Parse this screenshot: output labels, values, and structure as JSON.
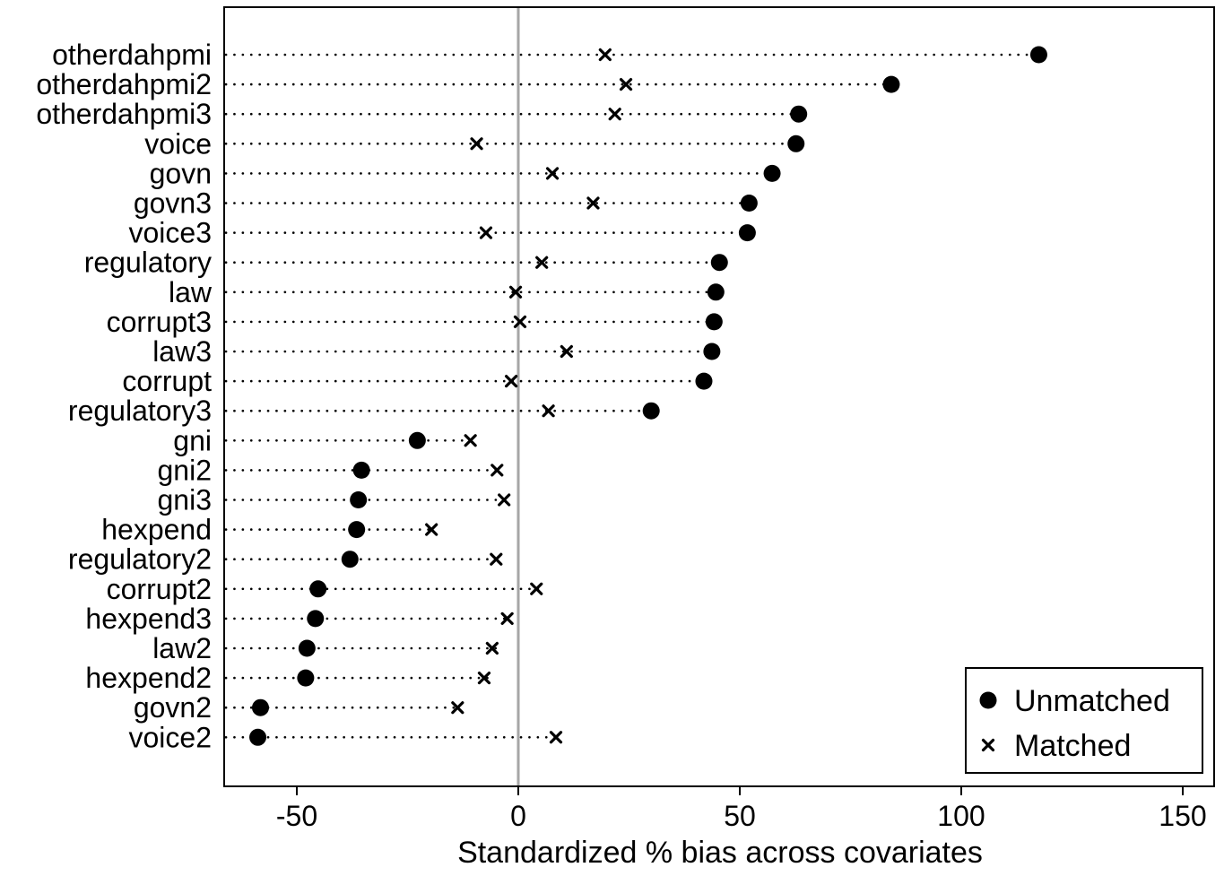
{
  "chart_data": {
    "type": "scatter",
    "xlabel": "Standardized % bias across covariates",
    "ylabel": "",
    "xlim": [
      -66,
      157
    ],
    "xticks": [
      -50,
      0,
      50,
      100,
      150
    ],
    "xtick_labels": [
      "-50",
      "0",
      "50",
      "100",
      "150"
    ],
    "reference_line_x": 0,
    "reference_line_color": "#a6a6a6",
    "grid": "dotted horizontal guide lines per covariate",
    "legend_position": "bottom-right",
    "categories": [
      "otherdahpmi",
      "otherdahpmi2",
      "otherdahpmi3",
      "voice",
      "govn",
      "govn3",
      "voice3",
      "regulatory",
      "law",
      "corrupt3",
      "law3",
      "corrupt",
      "regulatory3",
      "gni",
      "gni2",
      "gni3",
      "hexpend",
      "regulatory2",
      "corrupt2",
      "hexpend3",
      "law2",
      "hexpend2",
      "govn2",
      "voice2"
    ],
    "series": [
      {
        "name": "Unmatched",
        "marker": "circle",
        "color": "#000000",
        "values": [
          117.5,
          84.2,
          63.3,
          62.7,
          57.3,
          52.1,
          51.7,
          45.4,
          44.6,
          44.2,
          43.7,
          41.9,
          30.0,
          -22.8,
          -35.4,
          -36.1,
          -36.5,
          -38.0,
          -45.2,
          -45.8,
          -47.7,
          -48.0,
          -58.2,
          -58.8
        ]
      },
      {
        "name": "Matched",
        "marker": "x",
        "color": "#000000",
        "values": [
          19.6,
          24.3,
          21.8,
          -9.4,
          7.7,
          16.9,
          -7.3,
          5.3,
          -0.6,
          0.4,
          10.9,
          -1.6,
          6.8,
          -10.8,
          -4.8,
          -3.2,
          -19.6,
          -5.0,
          4.1,
          -2.5,
          -5.9,
          -7.7,
          -13.7,
          8.5
        ]
      }
    ],
    "legend": {
      "entries": [
        {
          "label": "Unmatched",
          "marker": "circle"
        },
        {
          "label": "Matched",
          "marker": "x"
        }
      ]
    }
  }
}
